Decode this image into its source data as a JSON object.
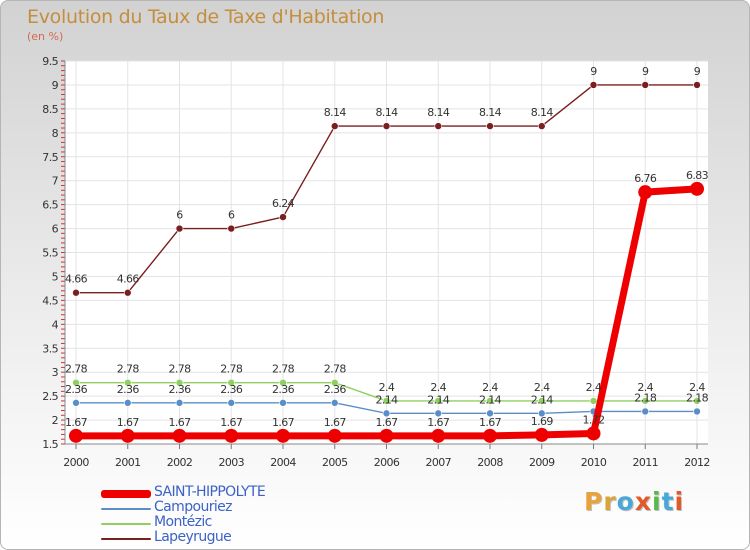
{
  "title": "Evolution du Taux de Taxe d'Habitation",
  "subtitle": "(en %)",
  "logo": {
    "text": "Proxiti",
    "colors": [
      "#e8a23a",
      "#d9a53a",
      "#4aa8d8",
      "#e05a2a",
      "#58b848",
      "#4aa8d8",
      "#e05a2a"
    ]
  },
  "chart_data": {
    "type": "line",
    "title": "Evolution du Taux de Taxe d'Habitation",
    "ylabel": "(en %)",
    "xlabel": "",
    "x": [
      "2000",
      "2001",
      "2002",
      "2003",
      "2004",
      "2005",
      "2006",
      "2007",
      "2008",
      "2009",
      "2010",
      "2011",
      "2012"
    ],
    "ylim": [
      1.5,
      9.5
    ],
    "yticks": [
      "1.5",
      "2",
      "2.5",
      "3",
      "3.5",
      "4",
      "4.5",
      "5",
      "5.5",
      "6",
      "6.5",
      "7",
      "7.5",
      "8",
      "8.5",
      "9",
      "9.5"
    ],
    "grid": true,
    "legend_position": "bottom-left",
    "series": [
      {
        "name": "SAINT-HIPPOLYTE",
        "color": "#ee0000",
        "emphasis": true,
        "values": [
          1.67,
          1.67,
          1.67,
          1.67,
          1.67,
          1.67,
          1.67,
          1.67,
          1.67,
          1.69,
          1.72,
          6.76,
          6.83
        ],
        "labels": [
          "1.67",
          "1.67",
          "1.67",
          "1.67",
          "1.67",
          "1.67",
          "1.67",
          "1.67",
          "1.67",
          "1.69",
          "1.72",
          "6.76",
          "6.83"
        ]
      },
      {
        "name": "Campouriez",
        "color": "#5b8ec8",
        "emphasis": false,
        "values": [
          2.36,
          2.36,
          2.36,
          2.36,
          2.36,
          2.36,
          2.14,
          2.14,
          2.14,
          2.14,
          2.18,
          2.18,
          2.18
        ],
        "labels": [
          "2.36",
          "2.36",
          "2.36",
          "2.36",
          "2.36",
          "2.36",
          "2.14",
          "2.14",
          "2.14",
          "2.14",
          "",
          "2.18",
          "2.18"
        ]
      },
      {
        "name": "Montézic",
        "color": "#8fd060",
        "emphasis": false,
        "values": [
          2.78,
          2.78,
          2.78,
          2.78,
          2.78,
          2.78,
          2.4,
          2.4,
          2.4,
          2.4,
          2.4,
          2.4,
          2.4
        ],
        "labels": [
          "2.78",
          "2.78",
          "2.78",
          "2.78",
          "2.78",
          "2.78",
          "2.4",
          "2.4",
          "2.4",
          "2.4",
          "2.4",
          "2.4",
          "2.4"
        ]
      },
      {
        "name": "Lapeyrugue",
        "color": "#7a1f1f",
        "emphasis": false,
        "values": [
          4.66,
          4.66,
          6,
          6,
          6.24,
          8.14,
          8.14,
          8.14,
          8.14,
          8.14,
          9,
          9,
          9
        ],
        "labels": [
          "4.66",
          "4.66",
          "6",
          "6",
          "6.24",
          "8.14",
          "8.14",
          "8.14",
          "8.14",
          "8.14",
          "9",
          "9",
          "9"
        ]
      }
    ]
  }
}
